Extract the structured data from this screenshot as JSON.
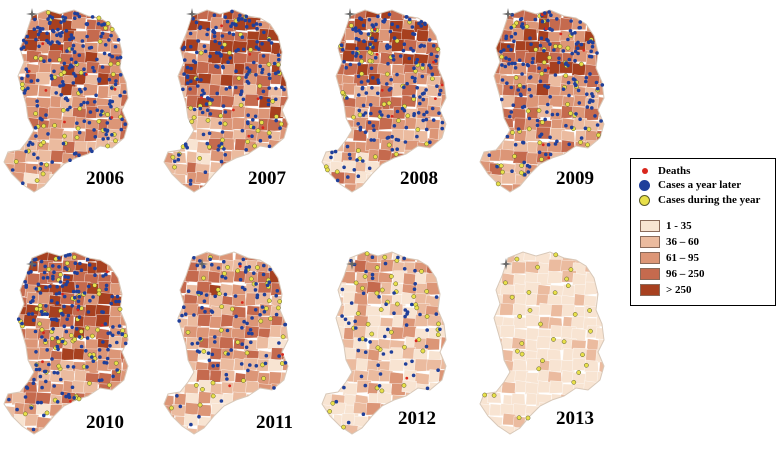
{
  "colors": {
    "background": "#ffffff",
    "death_dot": "#d9261c",
    "case_later_dot": "#1f3f9a",
    "case_year_dot": "#e8e04a",
    "case_year_dot_border": "#5a5a2a"
  },
  "legend": {
    "points": [
      {
        "label": "Deaths",
        "color": "#d9261c",
        "icon": "red-dot-icon"
      },
      {
        "label": "Cases a year later",
        "color": "#1f3f9a",
        "icon": "blue-dot-icon"
      },
      {
        "label": "Cases  during the year",
        "color": "#e8e04a",
        "icon": "yellow-dot-icon"
      }
    ],
    "classes": [
      {
        "label": "1 - 35",
        "color": "#f8e4d2"
      },
      {
        "label": "36 – 60",
        "color": "#ebbb9f"
      },
      {
        "label": "61 – 95",
        "color": "#dc9677"
      },
      {
        "label": "96 – 250",
        "color": "#c56a4e"
      },
      {
        "label": "> 250",
        "color": "#a7401f"
      }
    ]
  },
  "maps": [
    {
      "year": "2006",
      "intensity": 0.62,
      "blue_density": 0.95,
      "yellow_density": 0.55
    },
    {
      "year": "2007",
      "intensity": 0.66,
      "blue_density": 0.85,
      "yellow_density": 0.45
    },
    {
      "year": "2008",
      "intensity": 0.64,
      "blue_density": 0.9,
      "yellow_density": 0.5
    },
    {
      "year": "2009",
      "intensity": 0.62,
      "blue_density": 0.85,
      "yellow_density": 0.55
    },
    {
      "year": "2010",
      "intensity": 0.7,
      "blue_density": 0.9,
      "yellow_density": 0.7
    },
    {
      "year": "2011",
      "intensity": 0.5,
      "blue_density": 0.5,
      "yellow_density": 0.45
    },
    {
      "year": "2012",
      "intensity": 0.3,
      "blue_density": 0.3,
      "yellow_density": 0.45
    },
    {
      "year": "2013",
      "intensity": 0.08,
      "blue_density": 0.0,
      "yellow_density": 0.35
    }
  ]
}
